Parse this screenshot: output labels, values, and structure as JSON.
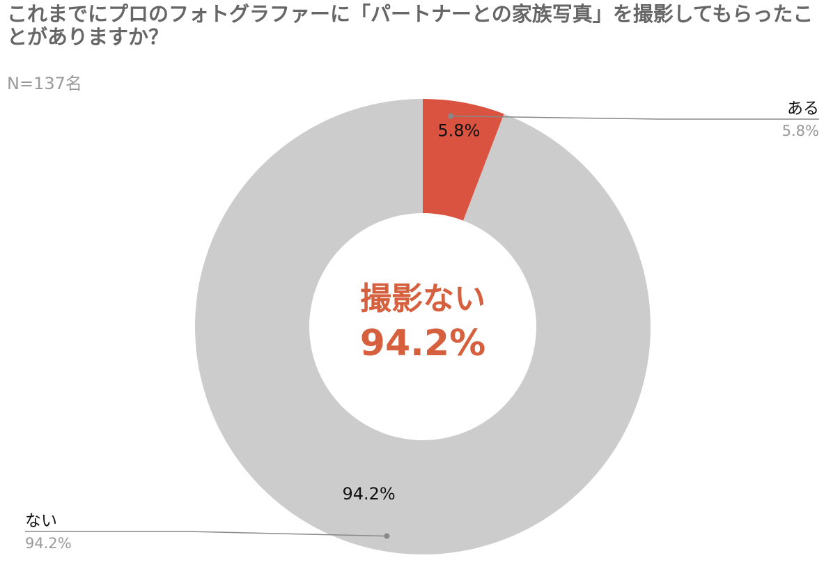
{
  "chart_data": {
    "type": "pie",
    "title": "これまでにプロのフォトグラファーに「パートナーとの家族写真」を撮影してもらったことがありますか？",
    "subtitle": "N=137名",
    "donut": true,
    "center_label": "撮影ない",
    "center_value": "94.2%",
    "legend_placement": "callouts",
    "categories": [
      "ある",
      "ない"
    ],
    "values": [
      5.8,
      94.2
    ],
    "value_labels": [
      "5.8%",
      "94.2%"
    ],
    "colors": [
      "#d95340",
      "#cccccc"
    ],
    "accent_color": "#d6603d",
    "leader_color": "#888888"
  }
}
